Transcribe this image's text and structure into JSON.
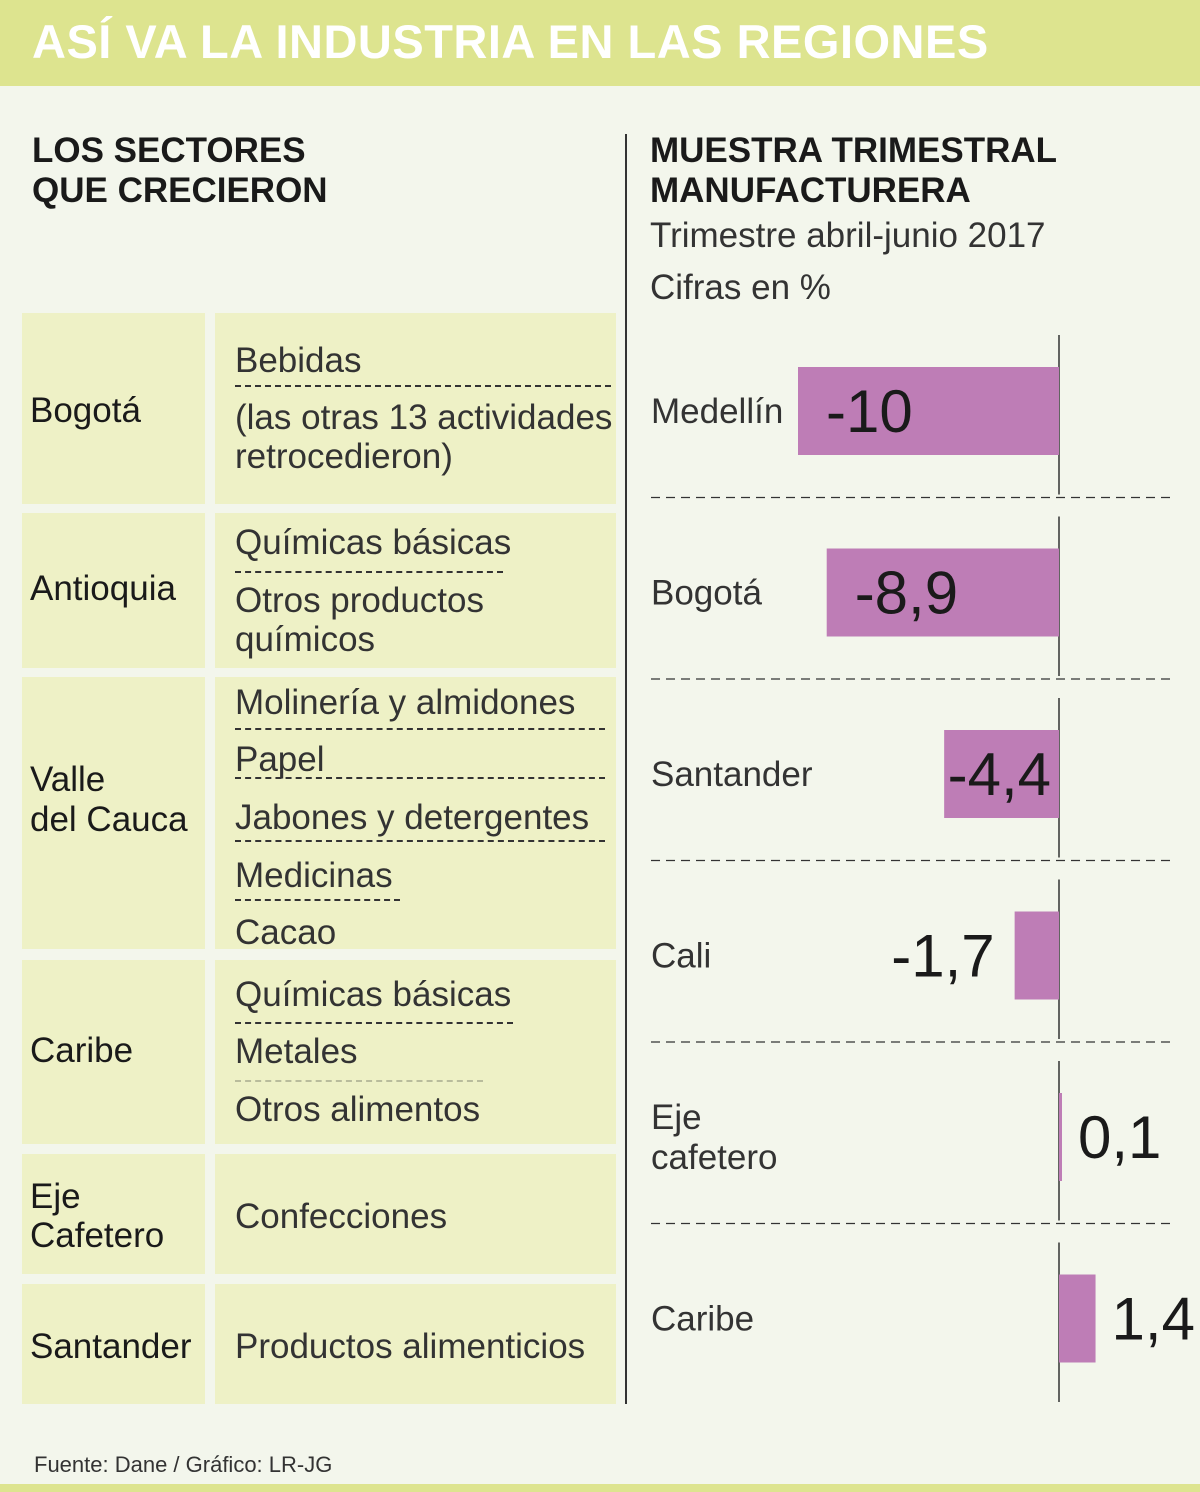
{
  "title": "ASÍ VA LA INDUSTRIA EN LAS REGIONES",
  "left_heading": [
    "LOS SECTORES",
    "QUE CRECIERON"
  ],
  "right_heading": [
    "MUESTRA TRIMESTRAL",
    "MANUFACTURERA"
  ],
  "period": "Trimestre abril-junio 2017",
  "unit": "Cifras en %",
  "sectors": [
    {
      "region": [
        "Bogotá"
      ],
      "activities": [
        [
          "Bebidas"
        ],
        [
          "(las otras 13 actividades",
          "retrocedieron)"
        ]
      ]
    },
    {
      "region": [
        "Antioquia"
      ],
      "activities": [
        [
          "Químicas básicas"
        ],
        [
          "Otros productos",
          "químicos"
        ]
      ]
    },
    {
      "region": [
        "Valle",
        "del Cauca"
      ],
      "activities": [
        [
          "Molinería y almidones"
        ],
        [
          "Papel"
        ],
        [
          "Jabones y detergentes"
        ],
        [
          "Medicinas"
        ],
        [
          "Cacao"
        ]
      ]
    },
    {
      "region": [
        "Caribe"
      ],
      "activities": [
        [
          "Químicas básicas"
        ],
        [
          "Metales"
        ],
        [
          "Otros alimentos"
        ]
      ]
    },
    {
      "region": [
        "Eje",
        "Cafetero"
      ],
      "activities": [
        [
          "Confecciones"
        ]
      ]
    },
    {
      "region": [
        "Santander"
      ],
      "activities": [
        [
          "Productos alimenticios"
        ]
      ]
    }
  ],
  "source": "Fuente: Dane / Gráfico: LR-JG",
  "colors": {
    "banner": "#dde48f",
    "cell": "#eef1c6",
    "bar": "#be7db6",
    "background": "#f3f6ec"
  },
  "chart_data": {
    "type": "bar",
    "orientation": "horizontal",
    "title": "MUESTRA TRIMESTRAL MANUFACTURERA",
    "subtitle": "Trimestre abril-junio 2017",
    "unit": "Cifras en %",
    "categories": [
      [
        "Medellín"
      ],
      [
        "Bogotá"
      ],
      [
        "Santander"
      ],
      [
        "Cali"
      ],
      [
        "Eje",
        "cafetero"
      ],
      [
        "Caribe"
      ]
    ],
    "values": [
      -10,
      -8.9,
      -4.4,
      -1.7,
      0.1,
      1.4
    ],
    "labels": [
      "-10",
      "-8,9",
      "-4,4",
      "-1,7",
      "0,1",
      "1,4"
    ],
    "xlim": [
      -10,
      1.4
    ]
  }
}
